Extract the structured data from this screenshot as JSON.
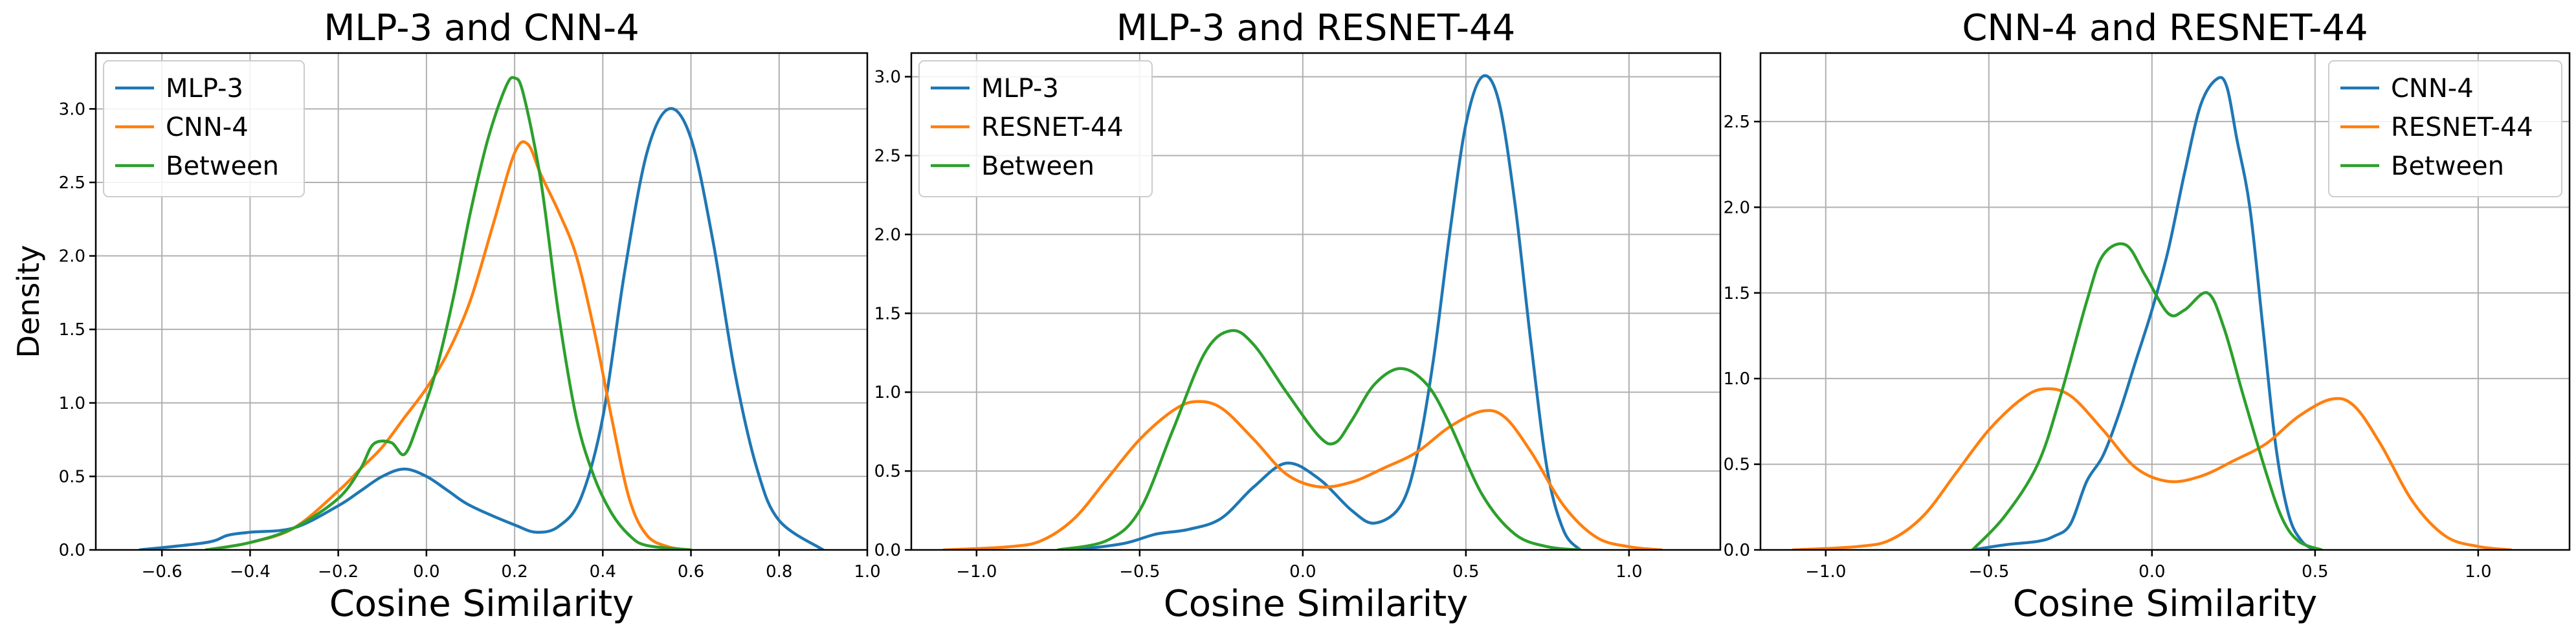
{
  "chart_data": [
    {
      "type": "line",
      "title": "MLP-3 and CNN-4",
      "xlabel": "Cosine Similarity",
      "ylabel": "Density",
      "xlim": [
        -0.75,
        1.0
      ],
      "ylim": [
        0,
        3.38
      ],
      "xticks": [
        -0.6,
        -0.4,
        -0.2,
        0.0,
        0.2,
        0.4,
        0.6,
        0.8,
        1.0
      ],
      "xtick_labels": [
        "−0.6",
        "−0.4",
        "−0.2",
        "0.0",
        "0.2",
        "0.4",
        "0.6",
        "0.8",
        "1.0"
      ],
      "yticks": [
        0,
        0.5,
        1.0,
        1.5,
        2.0,
        2.5,
        3.0
      ],
      "ytick_labels": [
        "0.0",
        "0.5",
        "1.0",
        "1.5",
        "2.0",
        "2.5",
        "3.0"
      ],
      "grid": true,
      "legend_position": "top-left",
      "series": [
        {
          "name": "MLP-3",
          "color": "#1f77b4",
          "x": [
            -0.65,
            -0.5,
            -0.45,
            -0.4,
            -0.3,
            -0.2,
            -0.15,
            -0.1,
            -0.05,
            0.0,
            0.05,
            0.1,
            0.2,
            0.25,
            0.3,
            0.35,
            0.4,
            0.45,
            0.5,
            0.55,
            0.6,
            0.65,
            0.7,
            0.75,
            0.8,
            0.9
          ],
          "y": [
            0.0,
            0.05,
            0.1,
            0.12,
            0.15,
            0.3,
            0.4,
            0.5,
            0.55,
            0.5,
            0.4,
            0.3,
            0.17,
            0.12,
            0.16,
            0.35,
            0.9,
            1.9,
            2.7,
            3.0,
            2.8,
            2.1,
            1.2,
            0.55,
            0.2,
            0.0
          ]
        },
        {
          "name": "CNN-4",
          "color": "#ff7f0e",
          "x": [
            -0.5,
            -0.4,
            -0.3,
            -0.2,
            -0.15,
            -0.1,
            -0.05,
            0.0,
            0.05,
            0.1,
            0.15,
            0.2,
            0.23,
            0.26,
            0.3,
            0.34,
            0.38,
            0.42,
            0.46,
            0.5,
            0.55,
            0.6
          ],
          "y": [
            0.0,
            0.05,
            0.15,
            0.4,
            0.55,
            0.7,
            0.9,
            1.1,
            1.35,
            1.7,
            2.2,
            2.7,
            2.76,
            2.55,
            2.3,
            2.0,
            1.5,
            0.9,
            0.35,
            0.1,
            0.02,
            0.0
          ]
        },
        {
          "name": "Between",
          "color": "#2ca02c",
          "x": [
            -0.5,
            -0.4,
            -0.3,
            -0.2,
            -0.15,
            -0.12,
            -0.08,
            -0.05,
            -0.02,
            0.02,
            0.06,
            0.1,
            0.14,
            0.18,
            0.2,
            0.22,
            0.26,
            0.3,
            0.34,
            0.38,
            0.42,
            0.46,
            0.5,
            0.6
          ],
          "y": [
            0.0,
            0.05,
            0.15,
            0.35,
            0.55,
            0.72,
            0.73,
            0.65,
            0.85,
            1.2,
            1.7,
            2.3,
            2.8,
            3.15,
            3.21,
            3.1,
            2.5,
            1.6,
            0.9,
            0.5,
            0.25,
            0.1,
            0.03,
            0.0
          ]
        }
      ]
    },
    {
      "type": "line",
      "title": "MLP-3 and RESNET-44",
      "xlabel": "Cosine Similarity",
      "ylabel": "",
      "xlim": [
        -1.2,
        1.28
      ],
      "ylim": [
        0,
        3.15
      ],
      "xticks": [
        -1.0,
        -0.5,
        0.0,
        0.5,
        1.0
      ],
      "xtick_labels": [
        "−1.0",
        "−0.5",
        "0.0",
        "0.5",
        "1.0"
      ],
      "yticks": [
        0,
        0.5,
        1.0,
        1.5,
        2.0,
        2.5,
        3.0
      ],
      "ytick_labels": [
        "0.0",
        "0.5",
        "1.0",
        "1.5",
        "2.0",
        "2.5",
        "3.0"
      ],
      "grid": true,
      "legend_position": "top-left",
      "series": [
        {
          "name": "MLP-3",
          "color": "#1f77b4",
          "x": [
            -0.7,
            -0.55,
            -0.45,
            -0.35,
            -0.25,
            -0.15,
            -0.05,
            0.05,
            0.15,
            0.22,
            0.3,
            0.35,
            0.4,
            0.45,
            0.5,
            0.55,
            0.6,
            0.65,
            0.7,
            0.75,
            0.8,
            0.85
          ],
          "y": [
            0.0,
            0.04,
            0.1,
            0.13,
            0.2,
            0.4,
            0.55,
            0.45,
            0.25,
            0.17,
            0.28,
            0.6,
            1.2,
            2.0,
            2.7,
            3.0,
            2.85,
            2.2,
            1.3,
            0.5,
            0.12,
            0.0
          ]
        },
        {
          "name": "RESNET-44",
          "color": "#ff7f0e",
          "x": [
            -1.1,
            -0.9,
            -0.8,
            -0.7,
            -0.6,
            -0.5,
            -0.4,
            -0.33,
            -0.25,
            -0.15,
            -0.05,
            0.05,
            0.15,
            0.25,
            0.35,
            0.45,
            0.55,
            0.62,
            0.7,
            0.8,
            0.9,
            1.0,
            1.1
          ],
          "y": [
            0.0,
            0.02,
            0.06,
            0.2,
            0.45,
            0.7,
            0.88,
            0.94,
            0.9,
            0.7,
            0.48,
            0.4,
            0.43,
            0.52,
            0.62,
            0.78,
            0.88,
            0.84,
            0.62,
            0.28,
            0.08,
            0.02,
            0.0
          ]
        },
        {
          "name": "Between",
          "color": "#2ca02c",
          "x": [
            -0.75,
            -0.6,
            -0.5,
            -0.4,
            -0.3,
            -0.22,
            -0.15,
            -0.05,
            0.05,
            0.1,
            0.15,
            0.22,
            0.3,
            0.38,
            0.45,
            0.55,
            0.65,
            0.75,
            0.85
          ],
          "y": [
            0.0,
            0.06,
            0.25,
            0.75,
            1.25,
            1.39,
            1.3,
            1.0,
            0.72,
            0.68,
            0.82,
            1.05,
            1.15,
            1.05,
            0.8,
            0.35,
            0.1,
            0.02,
            0.0
          ]
        }
      ]
    },
    {
      "type": "line",
      "title": "CNN-4 and RESNET-44",
      "xlabel": "Cosine Similarity",
      "ylabel": "",
      "xlim": [
        -1.2,
        1.28
      ],
      "ylim": [
        0,
        2.9
      ],
      "xticks": [
        -1.0,
        -0.5,
        0.0,
        0.5,
        1.0
      ],
      "xtick_labels": [
        "−1.0",
        "−0.5",
        "0.0",
        "0.5",
        "1.0"
      ],
      "yticks": [
        0,
        0.5,
        1.0,
        1.5,
        2.0,
        2.5
      ],
      "ytick_labels": [
        "0.0",
        "0.5",
        "1.0",
        "1.5",
        "2.0",
        "2.5"
      ],
      "grid": true,
      "legend_position": "top-right",
      "series": [
        {
          "name": "CNN-4",
          "color": "#1f77b4",
          "x": [
            -0.55,
            -0.45,
            -0.35,
            -0.3,
            -0.25,
            -0.2,
            -0.15,
            -0.1,
            -0.05,
            0.0,
            0.05,
            0.1,
            0.15,
            0.2,
            0.23,
            0.26,
            0.3,
            0.34,
            0.38,
            0.42,
            0.46,
            0.5
          ],
          "y": [
            0.0,
            0.03,
            0.05,
            0.08,
            0.15,
            0.4,
            0.55,
            0.8,
            1.1,
            1.4,
            1.75,
            2.2,
            2.6,
            2.75,
            2.7,
            2.4,
            2.0,
            1.3,
            0.6,
            0.2,
            0.05,
            0.0
          ]
        },
        {
          "name": "RESNET-44",
          "color": "#ff7f0e",
          "x": [
            -1.1,
            -0.9,
            -0.8,
            -0.7,
            -0.6,
            -0.5,
            -0.4,
            -0.33,
            -0.25,
            -0.15,
            -0.05,
            0.05,
            0.15,
            0.25,
            0.35,
            0.45,
            0.55,
            0.62,
            0.7,
            0.8,
            0.9,
            1.0,
            1.1
          ],
          "y": [
            0.0,
            0.02,
            0.06,
            0.2,
            0.45,
            0.7,
            0.88,
            0.94,
            0.9,
            0.7,
            0.48,
            0.4,
            0.43,
            0.52,
            0.62,
            0.78,
            0.88,
            0.84,
            0.62,
            0.28,
            0.08,
            0.02,
            0.0
          ]
        },
        {
          "name": "Between",
          "color": "#2ca02c",
          "x": [
            -0.55,
            -0.45,
            -0.35,
            -0.28,
            -0.2,
            -0.15,
            -0.08,
            -0.02,
            0.05,
            0.1,
            0.17,
            0.22,
            0.28,
            0.35,
            0.4,
            0.45,
            0.52
          ],
          "y": [
            0.0,
            0.2,
            0.5,
            0.9,
            1.45,
            1.72,
            1.78,
            1.6,
            1.38,
            1.4,
            1.5,
            1.3,
            0.9,
            0.45,
            0.18,
            0.05,
            0.0
          ]
        }
      ]
    }
  ]
}
